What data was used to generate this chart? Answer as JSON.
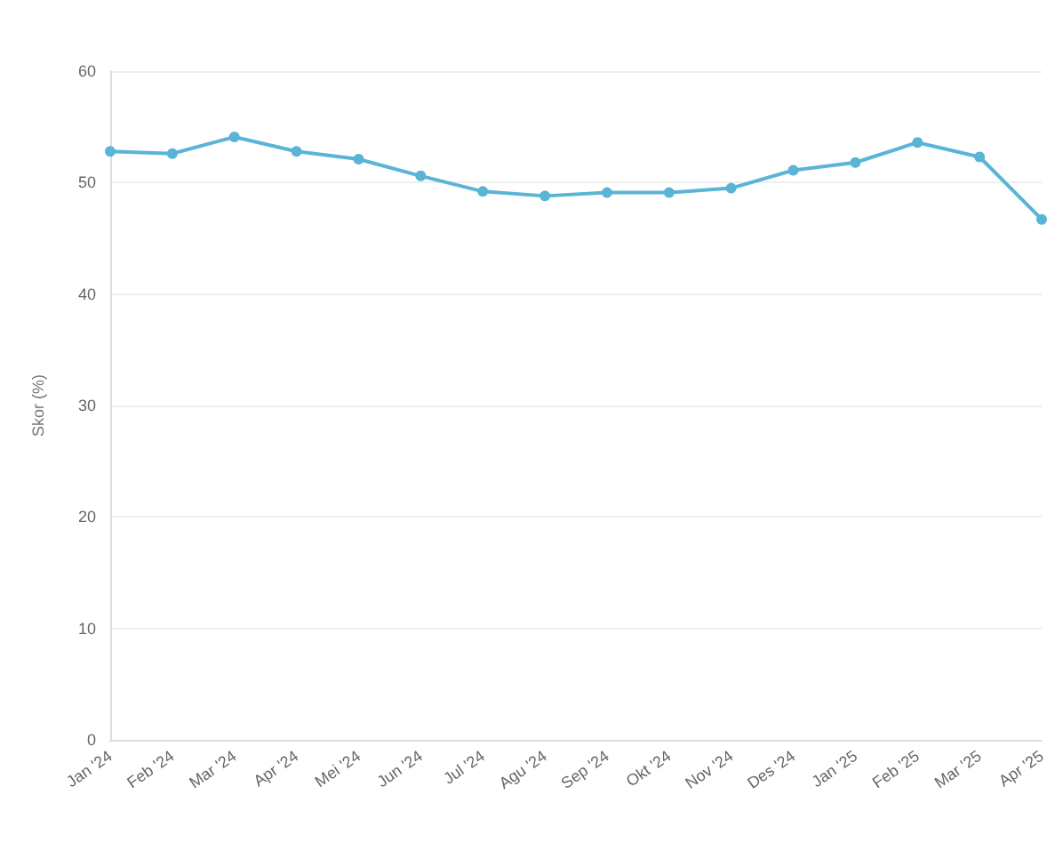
{
  "chart_data": {
    "type": "line",
    "ylabel": "Skor (%)",
    "categories": [
      "Jan '24",
      "Feb '24",
      "Mar '24",
      "Apr '24",
      "Mei '24",
      "Jun '24",
      "Jul '24",
      "Agu '24",
      "Sep '24",
      "Okt '24",
      "Nov '24",
      "Des '24",
      "Jan '25",
      "Feb '25",
      "Mar '25",
      "Apr '25"
    ],
    "series": [
      {
        "color": "#5ab4d6",
        "values": [
          52.8,
          52.6,
          54.1,
          52.8,
          52.1,
          50.6,
          49.2,
          48.8,
          49.1,
          49.1,
          49.5,
          51.1,
          51.8,
          53.6,
          52.3,
          46.7
        ]
      }
    ],
    "ylim": [
      0,
      60
    ],
    "yticks": [
      0,
      10,
      20,
      30,
      40,
      50,
      60
    ],
    "grid": "y",
    "marker": "circle",
    "line_style": "solid"
  }
}
